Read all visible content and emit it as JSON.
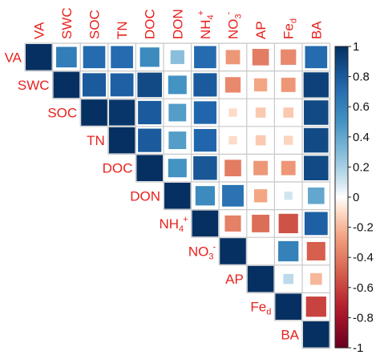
{
  "chart_data": {
    "type": "heatmap",
    "title": "",
    "variables": [
      "VA",
      "SWC",
      "SOC",
      "TN",
      "DOC",
      "DON",
      "NH4+",
      "NO3-",
      "AP",
      "Fed",
      "BA"
    ],
    "labels": [
      {
        "base": "VA",
        "sup": "",
        "sub": ""
      },
      {
        "base": "SWC",
        "sup": "",
        "sub": ""
      },
      {
        "base": "SOC",
        "sup": "",
        "sub": ""
      },
      {
        "base": "TN",
        "sup": "",
        "sub": ""
      },
      {
        "base": "DOC",
        "sup": "",
        "sub": ""
      },
      {
        "base": "DON",
        "sup": "",
        "sub": ""
      },
      {
        "base": "NH",
        "sup": "+",
        "sub": "4"
      },
      {
        "base": "NO",
        "sup": "-",
        "sub": "3"
      },
      {
        "base": "AP",
        "sup": "",
        "sub": ""
      },
      {
        "base": "Fe",
        "sup": "",
        "sub": "d"
      },
      {
        "base": "BA",
        "sup": "",
        "sub": ""
      }
    ],
    "upper_triangle_correlations": [
      [
        1.0,
        0.62,
        0.72,
        0.72,
        0.55,
        0.28,
        0.72,
        -0.3,
        -0.4,
        -0.35,
        0.72
      ],
      [
        null,
        1.0,
        0.8,
        0.78,
        0.88,
        0.5,
        0.8,
        -0.35,
        -0.25,
        -0.3,
        0.92
      ],
      [
        null,
        null,
        1.0,
        0.97,
        0.8,
        0.45,
        0.75,
        -0.1,
        -0.15,
        -0.15,
        0.88
      ],
      [
        null,
        null,
        null,
        1.0,
        0.8,
        0.45,
        0.75,
        -0.1,
        -0.15,
        -0.12,
        0.88
      ],
      [
        null,
        null,
        null,
        null,
        1.0,
        0.5,
        0.82,
        -0.4,
        -0.3,
        -0.3,
        0.88
      ],
      [
        null,
        null,
        null,
        null,
        null,
        1.0,
        0.55,
        0.68,
        -0.25,
        0.1,
        0.4
      ],
      [
        null,
        null,
        null,
        null,
        null,
        null,
        1.0,
        -0.38,
        -0.45,
        -0.55,
        0.78
      ],
      [
        null,
        null,
        null,
        null,
        null,
        null,
        null,
        1.0,
        0.0,
        0.6,
        -0.5
      ],
      [
        null,
        null,
        null,
        null,
        null,
        null,
        null,
        null,
        1.0,
        0.15,
        -0.2
      ],
      [
        null,
        null,
        null,
        null,
        null,
        null,
        null,
        null,
        null,
        1.0,
        -0.6
      ],
      [
        null,
        null,
        null,
        null,
        null,
        null,
        null,
        null,
        null,
        null,
        1.0
      ]
    ],
    "colorbar": {
      "range": [
        -1,
        1
      ],
      "ticks": [
        "1",
        "0.8",
        "0.6",
        "0.4",
        "0.2",
        "0",
        "-0.2",
        "-0.4",
        "-0.6",
        "-0.8",
        "-1"
      ],
      "low_color": "#67001f",
      "mid_color": "#ffffff",
      "high_color": "#053061"
    },
    "label_color": "#e8211e"
  }
}
